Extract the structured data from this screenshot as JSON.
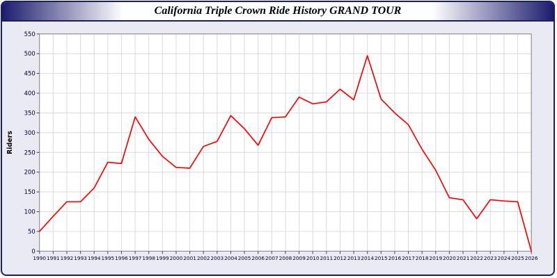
{
  "window": {
    "title": "California Triple Crown Ride History GRAND TOUR"
  },
  "chart_data": {
    "type": "line",
    "title": "California Triple Crown Ride History GRAND TOUR",
    "xlabel": "",
    "ylabel": "Riders",
    "ylim": [
      0,
      550
    ],
    "y_tick_step": 50,
    "grid": true,
    "legend_position": "none",
    "x": [
      1990,
      1991,
      1992,
      1993,
      1994,
      1995,
      1996,
      1997,
      1998,
      1999,
      2000,
      2001,
      2002,
      2003,
      2004,
      2005,
      2006,
      2007,
      2008,
      2009,
      2010,
      2011,
      2012,
      2013,
      2014,
      2015,
      2016,
      2017,
      2018,
      2019,
      2020,
      2021,
      2022,
      2023,
      2024,
      2025,
      2026
    ],
    "values": [
      50,
      88,
      125,
      125,
      160,
      225,
      222,
      340,
      283,
      240,
      212,
      210,
      265,
      278,
      343,
      310,
      268,
      338,
      340,
      390,
      373,
      378,
      410,
      383,
      495,
      385,
      350,
      320,
      258,
      205,
      135,
      130,
      82,
      130,
      127,
      125,
      0
    ],
    "line_color": "#ff0000",
    "plot_background": "#ffffff",
    "grid_color": "#d9d9e2",
    "axis_color": "#808080",
    "tick_label_color": "#000033",
    "panel_background": "#eaeaf4",
    "border_color": "#1c1c6e"
  }
}
